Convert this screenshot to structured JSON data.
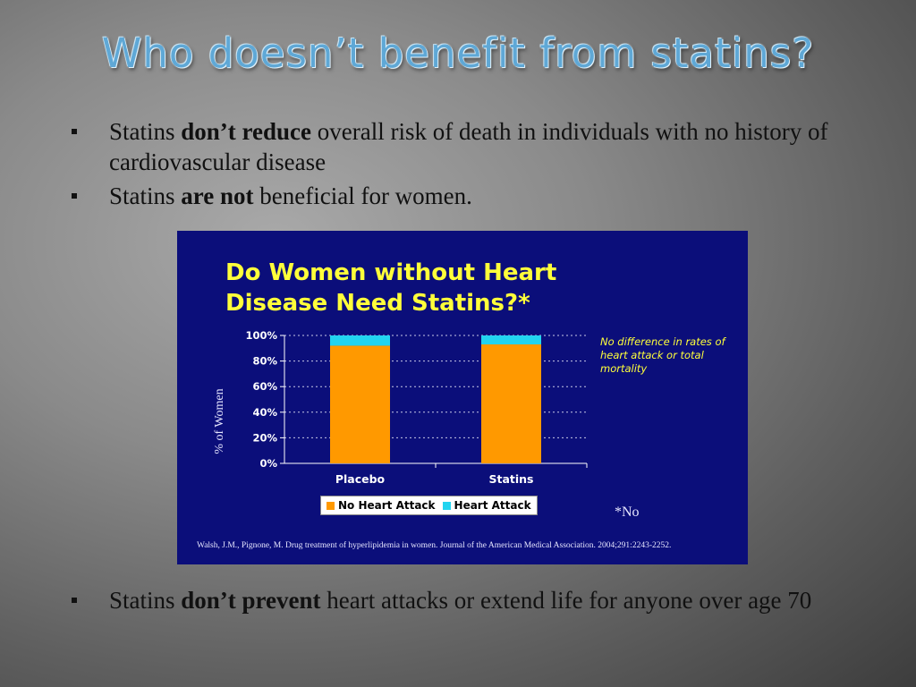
{
  "slide": {
    "title": "Who doesn’t benefit from statins?",
    "bullets_top": [
      {
        "pre": "Statins ",
        "bold": "don’t reduce",
        "post": " overall risk of death in individuals with no history of cardiovascular disease"
      },
      {
        "pre": "Statins ",
        "bold": "are not",
        "post": " beneficial for women."
      }
    ],
    "bullets_bottom": [
      {
        "pre": "Statins ",
        "bold": "don’t prevent",
        "post": " heart attacks or extend life for anyone over age 70"
      }
    ]
  },
  "figure": {
    "note": "No difference in rates of heart attack or total mortality",
    "footnote": "*No",
    "citation": "Walsh, J.M., Pignone, M. Drug treatment of hyperlipidemia in women. Journal of the American Medical Association. 2004;291:2243-2252.",
    "background": "#0b0e7a"
  },
  "chart_data": {
    "type": "bar",
    "stacked": true,
    "title": "Do Women without Heart Disease Need Statins?*",
    "xlabel": "",
    "ylabel": "% of Women",
    "categories": [
      "Placebo",
      "Statins"
    ],
    "series": [
      {
        "name": "No Heart Attack",
        "values": [
          92,
          93
        ],
        "color": "#ff9900"
      },
      {
        "name": "Heart Attack",
        "values": [
          8,
          7
        ],
        "color": "#22d4f0"
      }
    ],
    "ylim": [
      0,
      100
    ],
    "yticks": [
      "0%",
      "20%",
      "40%",
      "60%",
      "80%",
      "100%"
    ],
    "ytick_values": [
      0,
      20,
      40,
      60,
      80,
      100
    ],
    "grid": true,
    "legend": "bottom"
  }
}
